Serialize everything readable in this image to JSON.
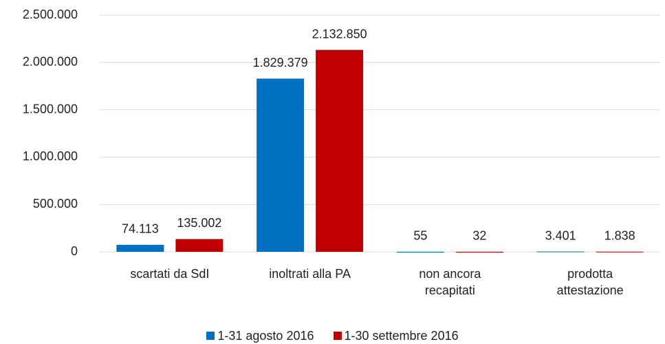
{
  "chart_data": {
    "type": "bar",
    "categories": [
      "scartati da SdI",
      "inoltrati alla PA",
      "non ancora recapitati",
      "prodotta attestazione"
    ],
    "series": [
      {
        "name": "1-31 agosto 2016",
        "color": "#0070c0",
        "values": [
          74113,
          1829379,
          55,
          3401
        ],
        "value_labels": [
          "74.113",
          "1.829.379",
          "55",
          "3.401"
        ]
      },
      {
        "name": "1-30 settembre 2016",
        "color": "#c00000",
        "values": [
          135002,
          2132850,
          32,
          1838
        ],
        "value_labels": [
          "135.002",
          "2.132.850",
          "32",
          "1.838"
        ]
      }
    ],
    "ylim": [
      0,
      2500000
    ],
    "yticks": [
      0,
      {
        "value": 500000,
        "label": "500.000"
      },
      {
        "value": 1000000,
        "label": "1.000.000"
      },
      {
        "value": 1500000,
        "label": "1.500.000"
      },
      {
        "value": 2000000,
        "label": "2.000.000"
      },
      {
        "value": 2500000,
        "label": "2.500.000"
      }
    ],
    "grid": true
  }
}
